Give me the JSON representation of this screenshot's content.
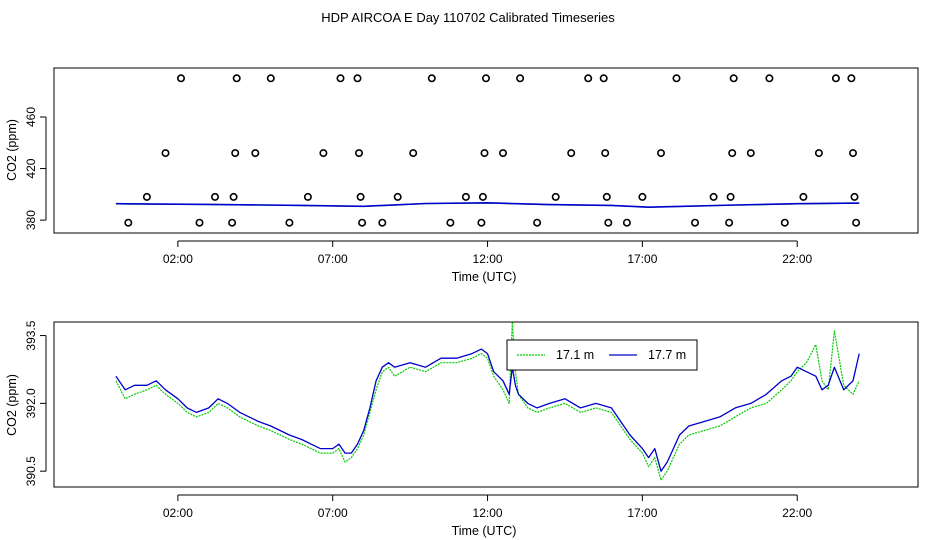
{
  "title": "HDP AIRCOA E  Day 110702  Calibrated Timeseries",
  "colors": {
    "green": "#00cc00",
    "blue": "#0000cc",
    "axis": "#000000"
  },
  "chart_data": [
    {
      "type": "scatter",
      "xlabel": "Time (UTC)",
      "ylabel": "CO2 (ppm)",
      "x_unit": "hours UTC",
      "xlim": [
        -2,
        25.9
      ],
      "ylim": [
        370,
        498
      ],
      "xticks": [
        2,
        7,
        12,
        17,
        22
      ],
      "xtick_labels": [
        "02:00",
        "07:00",
        "12:00",
        "17:00",
        "22:00"
      ],
      "yticks": [
        380,
        420,
        460
      ],
      "ytick_labels": [
        "380",
        "420",
        "460"
      ],
      "scatter_series": {
        "name": "",
        "levels": [
          378,
          398,
          432,
          490
        ],
        "points": [
          {
            "x": 0.4,
            "y": 378
          },
          {
            "x": 1.0,
            "y": 398
          },
          {
            "x": 1.6,
            "y": 432
          },
          {
            "x": 2.1,
            "y": 490
          },
          {
            "x": 2.7,
            "y": 378
          },
          {
            "x": 3.2,
            "y": 398
          },
          {
            "x": 3.75,
            "y": 378
          },
          {
            "x": 3.8,
            "y": 398
          },
          {
            "x": 3.85,
            "y": 432
          },
          {
            "x": 3.9,
            "y": 490
          },
          {
            "x": 4.5,
            "y": 432
          },
          {
            "x": 5.0,
            "y": 490
          },
          {
            "x": 5.6,
            "y": 378
          },
          {
            "x": 6.2,
            "y": 398
          },
          {
            "x": 6.7,
            "y": 432
          },
          {
            "x": 7.25,
            "y": 490
          },
          {
            "x": 7.8,
            "y": 490
          },
          {
            "x": 7.85,
            "y": 432
          },
          {
            "x": 7.9,
            "y": 398
          },
          {
            "x": 7.95,
            "y": 378
          },
          {
            "x": 8.6,
            "y": 378
          },
          {
            "x": 9.1,
            "y": 398
          },
          {
            "x": 9.6,
            "y": 432
          },
          {
            "x": 10.2,
            "y": 490
          },
          {
            "x": 10.8,
            "y": 378
          },
          {
            "x": 11.3,
            "y": 398
          },
          {
            "x": 11.8,
            "y": 378
          },
          {
            "x": 11.85,
            "y": 398
          },
          {
            "x": 11.9,
            "y": 432
          },
          {
            "x": 11.95,
            "y": 490
          },
          {
            "x": 12.5,
            "y": 432
          },
          {
            "x": 13.05,
            "y": 490
          },
          {
            "x": 13.6,
            "y": 378
          },
          {
            "x": 14.2,
            "y": 398
          },
          {
            "x": 14.7,
            "y": 432
          },
          {
            "x": 15.25,
            "y": 490
          },
          {
            "x": 15.75,
            "y": 490
          },
          {
            "x": 15.8,
            "y": 432
          },
          {
            "x": 15.85,
            "y": 398
          },
          {
            "x": 15.9,
            "y": 378
          },
          {
            "x": 16.5,
            "y": 378
          },
          {
            "x": 17.0,
            "y": 398
          },
          {
            "x": 17.6,
            "y": 432
          },
          {
            "x": 18.1,
            "y": 490
          },
          {
            "x": 18.7,
            "y": 378
          },
          {
            "x": 19.3,
            "y": 398
          },
          {
            "x": 19.8,
            "y": 378
          },
          {
            "x": 19.85,
            "y": 398
          },
          {
            "x": 19.9,
            "y": 432
          },
          {
            "x": 19.95,
            "y": 490
          },
          {
            "x": 20.5,
            "y": 432
          },
          {
            "x": 21.1,
            "y": 490
          },
          {
            "x": 21.6,
            "y": 378
          },
          {
            "x": 22.2,
            "y": 398
          },
          {
            "x": 22.7,
            "y": 432
          },
          {
            "x": 23.25,
            "y": 490
          },
          {
            "x": 23.75,
            "y": 490
          },
          {
            "x": 23.8,
            "y": 432
          },
          {
            "x": 23.85,
            "y": 398
          },
          {
            "x": 23.9,
            "y": 378
          }
        ]
      },
      "line_series": [
        {
          "name": "",
          "color": "#00cc00",
          "x": [
            0,
            3,
            6,
            8,
            10,
            12,
            14,
            16,
            17.2,
            18,
            20,
            22,
            24
          ],
          "values": [
            392.6,
            392.1,
            391.3,
            390.6,
            392.8,
            393.3,
            391.9,
            391.3,
            390.1,
            390.4,
            391.6,
            392.6,
            393.1
          ]
        },
        {
          "name": "",
          "color": "#0000cc",
          "x": [
            0,
            3,
            6,
            8,
            10,
            12,
            14,
            16,
            17.2,
            18,
            20,
            22,
            24
          ],
          "values": [
            392.7,
            392.2,
            391.4,
            390.7,
            392.9,
            393.4,
            392.0,
            391.4,
            390.0,
            390.5,
            391.7,
            392.7,
            393.2
          ]
        }
      ]
    },
    {
      "type": "line",
      "xlabel": "Time (UTC)",
      "ylabel": "CO2 (ppm)",
      "x_unit": "hours UTC",
      "xlim": [
        -2,
        25.9
      ],
      "ylim": [
        390.15,
        393.8
      ],
      "xticks": [
        2,
        7,
        12,
        17,
        22
      ],
      "xtick_labels": [
        "02:00",
        "07:00",
        "12:00",
        "17:00",
        "22:00"
      ],
      "yticks": [
        390.5,
        392.0,
        393.5
      ],
      "ytick_labels": [
        "390.5",
        "392.0",
        "393.5"
      ],
      "legend_position": "top-center",
      "series": [
        {
          "name": "17.1 m",
          "color": "#00cc00",
          "x": [
            0,
            0.3,
            0.6,
            1.0,
            1.3,
            1.6,
            2.0,
            2.3,
            2.6,
            3.0,
            3.3,
            3.6,
            4.0,
            4.3,
            4.6,
            5.0,
            5.3,
            5.6,
            6.0,
            6.3,
            6.6,
            7.0,
            7.2,
            7.4,
            7.6,
            7.8,
            8.0,
            8.2,
            8.4,
            8.6,
            8.8,
            9.0,
            9.5,
            10.0,
            10.5,
            11.0,
            11.5,
            11.8,
            12.0,
            12.2,
            12.5,
            12.7,
            12.8,
            12.9,
            13.0,
            13.3,
            13.6,
            14.0,
            14.5,
            15.0,
            15.5,
            16.0,
            16.3,
            16.6,
            17.0,
            17.2,
            17.4,
            17.6,
            17.8,
            18.0,
            18.2,
            18.5,
            19.0,
            19.5,
            20.0,
            20.5,
            21.0,
            21.5,
            21.8,
            22.0,
            22.3,
            22.6,
            22.8,
            23.0,
            23.2,
            23.5,
            23.8,
            24.0
          ],
          "values": [
            392.5,
            392.1,
            392.2,
            392.3,
            392.4,
            392.2,
            392.0,
            391.8,
            391.7,
            391.8,
            392.0,
            391.9,
            391.7,
            391.6,
            391.5,
            391.4,
            391.3,
            391.2,
            391.1,
            391.0,
            390.9,
            390.9,
            391.0,
            390.7,
            390.8,
            391.0,
            391.3,
            391.8,
            392.3,
            392.7,
            392.8,
            392.6,
            392.8,
            392.7,
            392.9,
            392.9,
            393.0,
            393.1,
            393.0,
            392.6,
            392.3,
            392.0,
            393.8,
            392.7,
            392.2,
            391.9,
            391.8,
            391.9,
            392.0,
            391.8,
            391.9,
            391.8,
            391.5,
            391.2,
            390.9,
            390.6,
            390.8,
            390.3,
            390.5,
            390.8,
            391.1,
            391.3,
            391.4,
            391.5,
            391.7,
            391.9,
            392.0,
            392.3,
            392.5,
            392.7,
            392.9,
            393.3,
            392.5,
            392.3,
            393.6,
            392.4,
            392.2,
            392.5
          ]
        },
        {
          "name": "17.7 m",
          "color": "#0000cc",
          "x": [
            0,
            0.3,
            0.6,
            1.0,
            1.3,
            1.6,
            2.0,
            2.3,
            2.6,
            3.0,
            3.3,
            3.6,
            4.0,
            4.3,
            4.6,
            5.0,
            5.3,
            5.6,
            6.0,
            6.3,
            6.6,
            7.0,
            7.2,
            7.4,
            7.6,
            7.8,
            8.0,
            8.2,
            8.4,
            8.6,
            8.8,
            9.0,
            9.5,
            10.0,
            10.5,
            11.0,
            11.5,
            11.8,
            12.0,
            12.2,
            12.5,
            12.7,
            12.8,
            12.9,
            13.0,
            13.3,
            13.6,
            14.0,
            14.5,
            15.0,
            15.5,
            16.0,
            16.3,
            16.6,
            17.0,
            17.2,
            17.4,
            17.6,
            17.8,
            18.0,
            18.2,
            18.5,
            19.0,
            19.5,
            20.0,
            20.5,
            21.0,
            21.5,
            21.8,
            22.0,
            22.3,
            22.6,
            22.8,
            23.0,
            23.2,
            23.5,
            23.8,
            24.0
          ],
          "values": [
            392.6,
            392.3,
            392.4,
            392.4,
            392.5,
            392.3,
            392.1,
            391.9,
            391.8,
            391.9,
            392.1,
            392.0,
            391.8,
            391.7,
            391.6,
            391.5,
            391.4,
            391.3,
            391.2,
            391.1,
            391.0,
            391.0,
            391.1,
            390.9,
            390.9,
            391.1,
            391.4,
            391.9,
            392.5,
            392.8,
            392.9,
            392.8,
            392.9,
            392.8,
            393.0,
            393.0,
            393.1,
            393.2,
            393.1,
            392.7,
            392.5,
            392.2,
            392.8,
            392.4,
            392.2,
            392.0,
            391.9,
            392.0,
            392.1,
            391.9,
            392.0,
            391.9,
            391.6,
            391.3,
            391.0,
            390.8,
            391.0,
            390.5,
            390.7,
            391.0,
            391.3,
            391.5,
            391.6,
            391.7,
            391.9,
            392.0,
            392.2,
            392.5,
            392.6,
            392.8,
            392.7,
            392.6,
            392.3,
            392.4,
            392.8,
            392.3,
            392.5,
            393.1
          ]
        }
      ]
    }
  ]
}
